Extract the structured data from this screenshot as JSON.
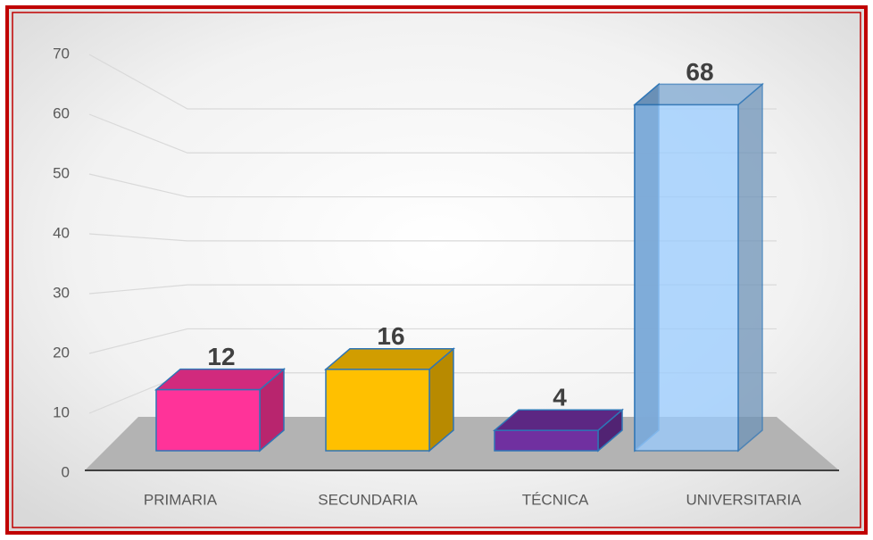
{
  "chart_data": {
    "type": "bar3d",
    "categories": [
      "PRIMARIA",
      "SECUNDARIA",
      "TÉCNICA",
      "UNIVERSITARIA"
    ],
    "values": [
      12,
      16,
      4,
      68
    ],
    "colors": [
      "#ff3399",
      "#ffc000",
      "#7030a0",
      "#99ccff"
    ],
    "ylim": [
      0,
      70
    ],
    "yticks": [
      0,
      10,
      20,
      30,
      40,
      50,
      60,
      70
    ],
    "grid": true
  }
}
